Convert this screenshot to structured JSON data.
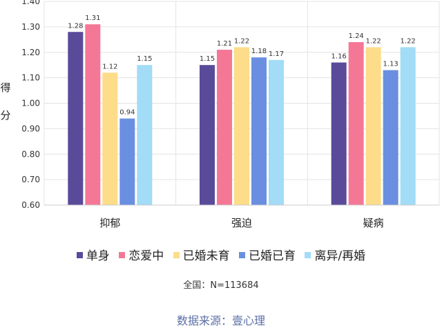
{
  "chart_data": {
    "type": "bar",
    "ylabel": "得\n分",
    "ylim": [
      0.6,
      1.4
    ],
    "yticks": [
      "0.60",
      "0.70",
      "0.80",
      "0.90",
      "1.00",
      "1.10",
      "1.20",
      "1.30",
      "1.40"
    ],
    "grid": true,
    "categories": [
      "抑郁",
      "强迫",
      "疑病"
    ],
    "series": [
      {
        "name": "单身",
        "color": "#5a4a9a",
        "values": [
          1.28,
          1.15,
          1.16
        ]
      },
      {
        "name": "恋爱中",
        "color": "#f47896",
        "values": [
          1.31,
          1.21,
          1.24
        ]
      },
      {
        "name": "已婚未育",
        "color": "#fddc8a",
        "values": [
          1.12,
          1.22,
          1.22
        ]
      },
      {
        "name": "已婚已育",
        "color": "#6a8fe0",
        "values": [
          0.94,
          1.18,
          1.13
        ]
      },
      {
        "name": "离异/再婚",
        "color": "#a2dcf6",
        "values": [
          1.15,
          1.17,
          1.22
        ]
      }
    ],
    "data_labels": [
      [
        "1.28",
        "1.15",
        "1.16"
      ],
      [
        "1.31",
        "1.21",
        "1.24"
      ],
      [
        "1.12",
        "1.22",
        "1.22"
      ],
      [
        "0.94",
        "1.18",
        "1.13"
      ],
      [
        "1.15",
        "1.17",
        "1.22"
      ]
    ],
    "legend_position": "bottom"
  },
  "notes": {
    "sample": "全国：N=113684",
    "source": "数据来源：壹心理"
  }
}
